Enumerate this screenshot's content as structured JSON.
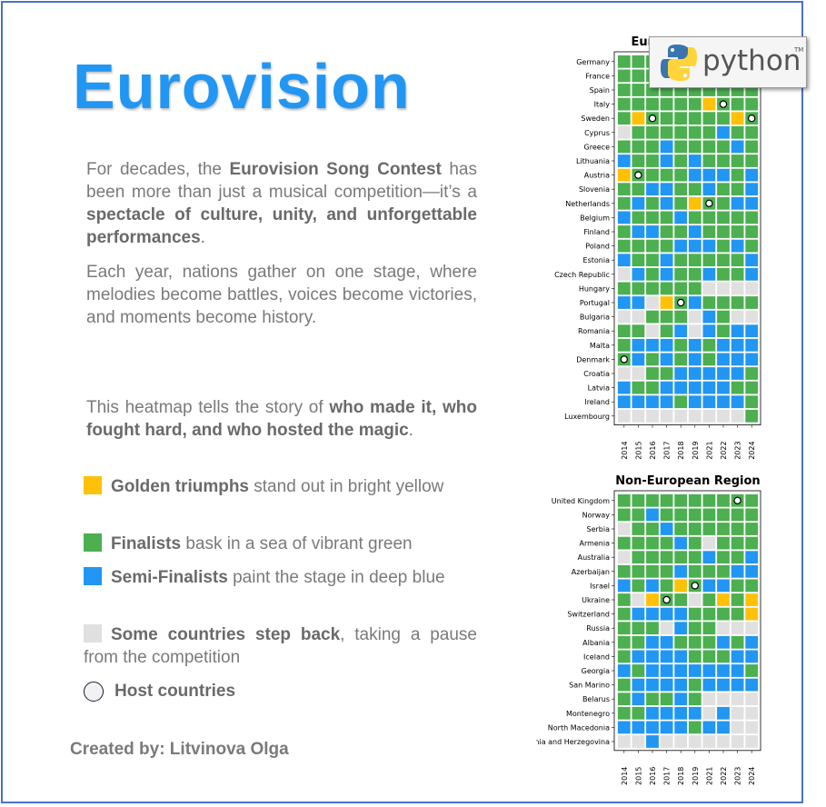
{
  "title": "Eurovision",
  "intro": {
    "p1": [
      {
        "t": "For decades, the ",
        "b": false
      },
      {
        "t": "Eurovision Song Contest",
        "b": true
      },
      {
        "t": " has been more than just a musical competition—it’s a ",
        "b": false
      },
      {
        "t": "spectacle of culture, unity, and unforgettable performances",
        "b": true
      },
      {
        "t": ".",
        "b": false
      }
    ],
    "p2": "Each year, nations gather on one stage, where melodies become battles, voices become victories, and moments become history.",
    "p3": [
      {
        "t": "This heatmap tells the story of ",
        "b": false
      },
      {
        "t": "who made it, who fought hard, and who hosted the magic",
        "b": true
      },
      {
        "t": ".",
        "b": false
      }
    ]
  },
  "legend": [
    {
      "bold": "Golden triumphs",
      "rest": " stand out in bright yellow",
      "color": "#ffc107",
      "kind": "square"
    },
    {
      "bold": "Finalists",
      "rest": " bask in a sea of vibrant green",
      "color": "#4caf50",
      "kind": "square"
    },
    {
      "bold": "Semi-Finalists",
      "rest": " paint the stage in deep blue",
      "color": "#2196f3",
      "kind": "square"
    },
    {
      "bold": "Some countries step back",
      "rest": ", taking a pause from the competition",
      "color": "#e0e0e0",
      "kind": "square"
    },
    {
      "bold": "Host countries",
      "rest": "",
      "color": "#f2f2f2",
      "kind": "circle"
    }
  ],
  "credit": "Created by: Litvinova Olga",
  "logo": {
    "text": "python",
    "tm": "TM"
  },
  "colors": {
    "winner": "#ffc107",
    "final": "#4caf50",
    "semi": "#2196f3",
    "absent": "#e0e0e0"
  },
  "chart_data": [
    {
      "type": "heatmap",
      "title": "European Region",
      "years": [
        "2014",
        "2015",
        "2016",
        "2017",
        "2018",
        "2019",
        "2021",
        "2022",
        "2023",
        "2024"
      ],
      "codes": "W=winner, F=finalist, S=semi-finalist, N=did not participate; hosts marked",
      "rows": [
        {
          "country": "Germany",
          "values": "FFFFFFFFFF",
          "hosts": []
        },
        {
          "country": "France",
          "values": "FFFFFFFFFF",
          "hosts": []
        },
        {
          "country": "Spain",
          "values": "FFFFFFFFFF",
          "hosts": []
        },
        {
          "country": "Italy",
          "values": "FFFFFFWFFF",
          "hosts": [
            "2022"
          ]
        },
        {
          "country": "Sweden",
          "values": "FWFFFFFFWF",
          "hosts": [
            "2016",
            "2024"
          ]
        },
        {
          "country": "Cyprus",
          "values": "NFFFFFFSFF",
          "hosts": []
        },
        {
          "country": "Greece",
          "values": "FFFSFFFFSF",
          "hosts": []
        },
        {
          "country": "Lithuania",
          "values": "SFFSFSFFFF",
          "hosts": []
        },
        {
          "country": "Austria",
          "values": "WFFFFSSSFS",
          "hosts": [
            "2015"
          ]
        },
        {
          "country": "Slovenia",
          "values": "FFSSFFSFFS",
          "hosts": []
        },
        {
          "country": "Netherlands",
          "values": "FSFSFWFFSS",
          "hosts": [
            "2021"
          ]
        },
        {
          "country": "Belgium",
          "values": "SFFFSFFFFF",
          "hosts": []
        },
        {
          "country": "Finland",
          "values": "FSSFFSFFFF",
          "hosts": []
        },
        {
          "country": "Poland",
          "values": "FFFFSSSFSF",
          "hosts": []
        },
        {
          "country": "Estonia",
          "values": "SFFSFFFFFS",
          "hosts": []
        },
        {
          "country": "Czech Republic",
          "values": "NSFSFFSFFS",
          "hosts": []
        },
        {
          "country": "Hungary",
          "values": "FFFFFFNNNN",
          "hosts": []
        },
        {
          "country": "Portugal",
          "values": "SSNWFSFFFF",
          "hosts": [
            "2018"
          ]
        },
        {
          "country": "Bulgaria",
          "values": "NNFFFNSFNN",
          "hosts": []
        },
        {
          "country": "Romania",
          "values": "FFNFSNSFSS",
          "hosts": []
        },
        {
          "country": "Malta",
          "values": "FSSSFSFSSS",
          "hosts": []
        },
        {
          "country": "Denmark",
          "values": "FSFSFSFSSS",
          "hosts": [
            "2014"
          ]
        },
        {
          "country": "Croatia",
          "values": "NNFFSSSSSF",
          "hosts": []
        },
        {
          "country": "Latvia",
          "values": "SFFSSSSSFF",
          "hosts": []
        },
        {
          "country": "Ireland",
          "values": "SSSSFSSSSF",
          "hosts": []
        },
        {
          "country": "Luxembourg",
          "values": "NNNNNNNNNF",
          "hosts": []
        }
      ]
    },
    {
      "type": "heatmap",
      "title": "Non-European Region",
      "years": [
        "2014",
        "2015",
        "2016",
        "2017",
        "2018",
        "2019",
        "2021",
        "2022",
        "2023",
        "2024"
      ],
      "codes": "W=winner, F=finalist, S=semi-finalist, N=did not participate; hosts marked",
      "rows": [
        {
          "country": "United Kingdom",
          "values": "FFFFFFFFFF",
          "hosts": [
            "2023"
          ]
        },
        {
          "country": "Norway",
          "values": "FFSFFFFFFF",
          "hosts": []
        },
        {
          "country": "Serbia",
          "values": "NFFSFFFFFF",
          "hosts": []
        },
        {
          "country": "Armenia",
          "values": "FFFFSFNFFF",
          "hosts": []
        },
        {
          "country": "Australia",
          "values": "NFFFFFSFFS",
          "hosts": []
        },
        {
          "country": "Azerbaijan",
          "values": "FFFFSFFFSS",
          "hosts": []
        },
        {
          "country": "Israel",
          "values": "SFSFWFSSFF",
          "hosts": [
            "2019"
          ]
        },
        {
          "country": "Ukraine",
          "values": "FNWFFNFWFW",
          "hosts": [
            "2017"
          ]
        },
        {
          "country": "Switzerland",
          "values": "FSSSSFFFFW",
          "hosts": []
        },
        {
          "country": "Russia",
          "values": "FFFNSFFNNN",
          "hosts": []
        },
        {
          "country": "Albania",
          "values": "FFSSFFFSFS",
          "hosts": []
        },
        {
          "country": "Iceland",
          "values": "FSSSSFFFSS",
          "hosts": []
        },
        {
          "country": "Georgia",
          "values": "SFSSSSSSSF",
          "hosts": []
        },
        {
          "country": "San Marino",
          "values": "FSSSSFSSSS",
          "hosts": []
        },
        {
          "country": "Belarus",
          "values": "FSFFSFNNNN",
          "hosts": []
        },
        {
          "country": "Montenegro",
          "values": "FFSSSSNSNN",
          "hosts": []
        },
        {
          "country": "North Macedonia",
          "values": "SSSSSFSSNN",
          "hosts": []
        },
        {
          "country": "Bosnia and Herzegovina",
          "values": "NNSNNNNNNN",
          "hosts": []
        }
      ]
    }
  ]
}
